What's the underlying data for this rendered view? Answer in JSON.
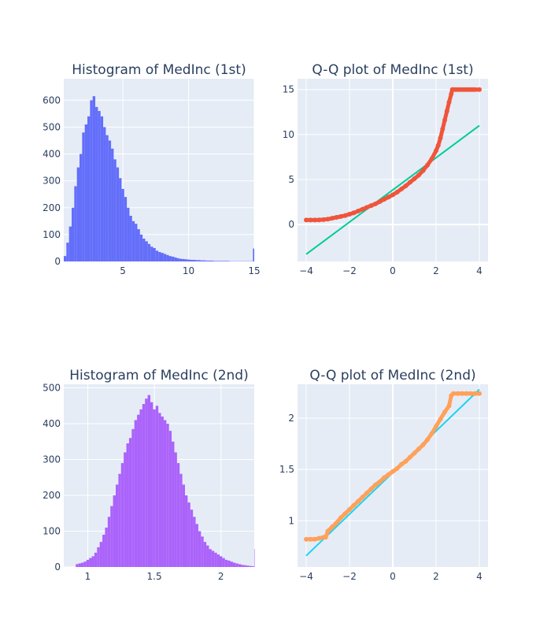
{
  "chart_data": [
    {
      "id": "hist1",
      "type": "bar",
      "title": "Histogram of MedInc (1st)",
      "xlim": [
        0.5,
        15.0
      ],
      "ylim": [
        0,
        680
      ],
      "xticks": [
        5,
        10,
        15
      ],
      "yticks": [
        0,
        100,
        200,
        300,
        400,
        500,
        600
      ],
      "color": "#636efa",
      "x": [
        0.5,
        0.7,
        0.9,
        1.1,
        1.3,
        1.5,
        1.7,
        1.9,
        2.1,
        2.3,
        2.5,
        2.7,
        2.9,
        3.1,
        3.3,
        3.5,
        3.7,
        3.9,
        4.1,
        4.3,
        4.5,
        4.7,
        4.9,
        5.1,
        5.3,
        5.5,
        5.7,
        5.9,
        6.1,
        6.3,
        6.5,
        6.7,
        6.9,
        7.1,
        7.3,
        7.5,
        7.7,
        7.9,
        8.1,
        8.3,
        8.5,
        8.7,
        8.9,
        9.1,
        9.3,
        9.5,
        9.7,
        9.9,
        10.1,
        10.3,
        10.5,
        10.7,
        10.9,
        11.1,
        11.3,
        11.5,
        11.7,
        11.9,
        12.1,
        12.3,
        12.5,
        12.7,
        12.9,
        13.1,
        13.3,
        13.5,
        13.7,
        13.9,
        14.1,
        14.3,
        14.5,
        14.7,
        14.9
      ],
      "values": [
        20,
        70,
        130,
        200,
        280,
        350,
        400,
        480,
        510,
        540,
        600,
        615,
        575,
        560,
        540,
        500,
        470,
        450,
        420,
        380,
        350,
        310,
        270,
        240,
        200,
        170,
        150,
        140,
        120,
        100,
        85,
        75,
        65,
        55,
        50,
        40,
        35,
        32,
        28,
        24,
        20,
        18,
        15,
        12,
        10,
        9,
        8,
        7,
        6,
        6,
        5,
        5,
        4,
        4,
        3,
        3,
        3,
        2,
        2,
        2,
        2,
        2,
        2,
        1,
        1,
        1,
        1,
        1,
        1,
        1,
        1,
        1,
        48
      ]
    },
    {
      "id": "qq1",
      "type": "scatter",
      "title": "Q-Q plot of MedInc (1st)",
      "xlim": [
        -4.4,
        4.4
      ],
      "ylim": [
        -4.1,
        16.2
      ],
      "xticks": [
        -4,
        -2,
        0,
        2,
        4
      ],
      "yticks": [
        0,
        5,
        10,
        15
      ],
      "point_color": "#ef553b",
      "line_color": "#00cc96",
      "points_x": [
        -4.0,
        -3.8,
        -3.6,
        -3.4,
        -3.2,
        -3.0,
        -2.8,
        -2.6,
        -2.4,
        -2.2,
        -2.0,
        -1.8,
        -1.6,
        -1.4,
        -1.2,
        -1.0,
        -0.8,
        -0.6,
        -0.4,
        -0.2,
        0.0,
        0.2,
        0.4,
        0.6,
        0.8,
        1.0,
        1.2,
        1.4,
        1.6,
        1.8,
        2.0,
        2.1,
        2.2,
        2.3,
        2.4,
        2.5,
        2.6,
        2.7,
        2.75,
        2.8,
        2.9,
        3.0,
        3.1,
        3.2,
        3.3,
        3.4,
        3.5,
        3.6,
        3.7,
        3.8,
        4.0
      ],
      "points_y": [
        0.5,
        0.5,
        0.5,
        0.52,
        0.55,
        0.6,
        0.7,
        0.8,
        0.9,
        1.0,
        1.15,
        1.3,
        1.5,
        1.7,
        1.9,
        2.1,
        2.3,
        2.55,
        2.8,
        3.05,
        3.3,
        3.6,
        3.95,
        4.3,
        4.7,
        5.1,
        5.5,
        6.0,
        6.6,
        7.3,
        8.2,
        8.8,
        9.6,
        10.6,
        11.6,
        12.6,
        13.6,
        14.5,
        15.0,
        15.0,
        15.0,
        15.0,
        15.0,
        15.0,
        15.0,
        15.0,
        15.0,
        15.0,
        15.0,
        15.0,
        15.0
      ],
      "line_x": [
        -4,
        4
      ],
      "line_y": [
        -3.3,
        11.0
      ]
    },
    {
      "id": "hist2",
      "type": "bar",
      "title": "Histogram of MedInc (2nd)",
      "xlim": [
        0.82,
        2.25
      ],
      "ylim": [
        0,
        510
      ],
      "xticks": [
        1,
        1.5,
        2
      ],
      "yticks": [
        0,
        100,
        200,
        300,
        400,
        500
      ],
      "color": "#ab63fa",
      "x": [
        0.83,
        0.85,
        0.87,
        0.89,
        0.91,
        0.93,
        0.95,
        0.97,
        0.99,
        1.01,
        1.03,
        1.05,
        1.07,
        1.09,
        1.11,
        1.13,
        1.15,
        1.17,
        1.19,
        1.21,
        1.23,
        1.25,
        1.27,
        1.29,
        1.31,
        1.33,
        1.35,
        1.37,
        1.39,
        1.41,
        1.43,
        1.45,
        1.47,
        1.49,
        1.51,
        1.53,
        1.55,
        1.57,
        1.59,
        1.61,
        1.63,
        1.65,
        1.67,
        1.69,
        1.71,
        1.73,
        1.75,
        1.77,
        1.79,
        1.81,
        1.83,
        1.85,
        1.87,
        1.89,
        1.91,
        1.93,
        1.95,
        1.97,
        1.99,
        2.01,
        2.03,
        2.05,
        2.07,
        2.09,
        2.11,
        2.13,
        2.15,
        2.17,
        2.19,
        2.21,
        2.23,
        2.25
      ],
      "values": [
        0,
        0,
        0,
        0,
        8,
        10,
        12,
        15,
        20,
        25,
        30,
        40,
        55,
        70,
        90,
        110,
        140,
        170,
        200,
        230,
        260,
        290,
        320,
        345,
        360,
        385,
        410,
        425,
        440,
        455,
        470,
        480,
        460,
        440,
        450,
        430,
        420,
        410,
        400,
        380,
        350,
        320,
        290,
        260,
        230,
        200,
        180,
        160,
        140,
        120,
        100,
        85,
        70,
        60,
        50,
        45,
        40,
        35,
        30,
        25,
        20,
        18,
        15,
        12,
        10,
        8,
        6,
        5,
        4,
        3,
        2,
        50
      ]
    },
    {
      "id": "qq2",
      "type": "scatter",
      "title": "Q-Q plot of MedInc (2nd)",
      "xlim": [
        -4.4,
        4.4
      ],
      "ylim": [
        0.55,
        2.33
      ],
      "xticks": [
        -4,
        -2,
        0,
        2,
        4
      ],
      "yticks": [
        1,
        1.5,
        2
      ],
      "ytick_labels": [
        "1",
        "1.5",
        "2"
      ],
      "point_color": "#ffa15a",
      "line_color": "#19d3f3",
      "points_x": [
        -4.0,
        -3.8,
        -3.6,
        -3.4,
        -3.2,
        -3.1,
        -3.0,
        -2.8,
        -2.6,
        -2.4,
        -2.2,
        -2.0,
        -1.8,
        -1.6,
        -1.4,
        -1.2,
        -1.0,
        -0.8,
        -0.6,
        -0.4,
        -0.2,
        0.0,
        0.2,
        0.4,
        0.6,
        0.8,
        1.0,
        1.2,
        1.4,
        1.6,
        1.8,
        2.0,
        2.2,
        2.4,
        2.6,
        2.7,
        2.8,
        3.0,
        3.2,
        3.4,
        3.6,
        3.8,
        4.0
      ],
      "points_y": [
        0.82,
        0.82,
        0.82,
        0.83,
        0.84,
        0.84,
        0.9,
        0.94,
        0.98,
        1.03,
        1.07,
        1.11,
        1.15,
        1.19,
        1.23,
        1.27,
        1.31,
        1.35,
        1.38,
        1.42,
        1.45,
        1.48,
        1.51,
        1.55,
        1.58,
        1.62,
        1.66,
        1.7,
        1.74,
        1.79,
        1.85,
        1.92,
        1.99,
        2.06,
        2.12,
        2.22,
        2.24,
        2.24,
        2.24,
        2.24,
        2.24,
        2.24,
        2.24
      ],
      "line_x": [
        -4,
        4
      ],
      "line_y": [
        0.66,
        2.28
      ]
    }
  ]
}
